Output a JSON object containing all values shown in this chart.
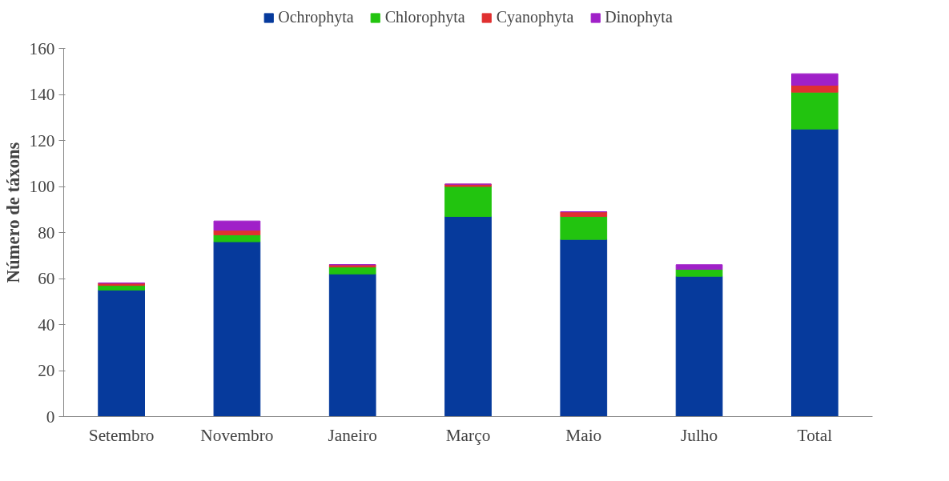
{
  "chart_data": {
    "type": "bar",
    "stacked": true,
    "ylabel": "Número de táxons",
    "categories": [
      "Setembro",
      "Novembro",
      "Janeiro",
      "Março",
      "Maio",
      "Julho",
      "Total"
    ],
    "series": [
      {
        "name": "Ochrophyta",
        "color": "#063a9c",
        "values": [
          55,
          76,
          62,
          87,
          77,
          61,
          125
        ]
      },
      {
        "name": "Chlorophyta",
        "color": "#22c40f",
        "values": [
          2,
          3,
          3,
          13,
          10,
          3,
          16
        ]
      },
      {
        "name": "Cyanophyta",
        "color": "#e03030",
        "values": [
          1,
          2,
          1,
          1,
          2,
          0,
          3
        ]
      },
      {
        "name": "Dinophyta",
        "color": "#a020c8",
        "values": [
          0,
          4,
          0,
          0,
          0,
          2,
          5
        ]
      }
    ],
    "ylim": [
      0,
      160
    ],
    "yticks": [
      0,
      20,
      40,
      60,
      80,
      100,
      120,
      140,
      160
    ],
    "grid": false,
    "legend": "top"
  }
}
